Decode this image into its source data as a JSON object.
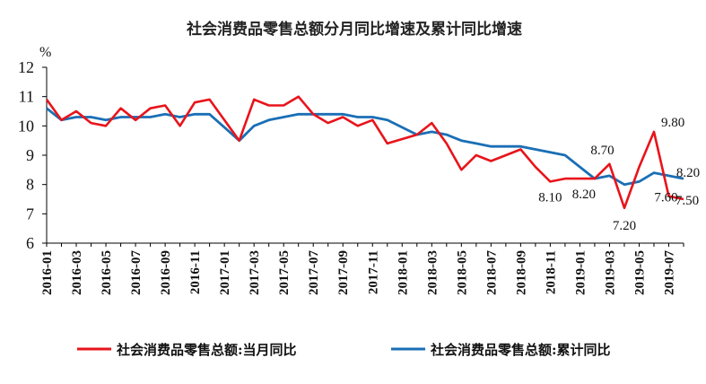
{
  "chart_data": {
    "type": "line",
    "title": "社会消费品零售总额分月同比增速及累计同比增速",
    "ylabel": "%",
    "xlabel": "",
    "ylim": [
      6,
      12
    ],
    "yticks": [
      6,
      7,
      8,
      9,
      10,
      11,
      12
    ],
    "grid": false,
    "legend_position": "bottom",
    "x": [
      "2016-01",
      "2016-02",
      "2016-03",
      "2016-04",
      "2016-05",
      "2016-06",
      "2016-07",
      "2016-08",
      "2016-09",
      "2016-10",
      "2016-11",
      "2016-12",
      "2017-01",
      "2017-02",
      "2017-03",
      "2017-04",
      "2017-05",
      "2017-06",
      "2017-07",
      "2017-08",
      "2017-09",
      "2017-10",
      "2017-11",
      "2017-12",
      "2018-01",
      "2018-02",
      "2018-03",
      "2018-04",
      "2018-05",
      "2018-06",
      "2018-07",
      "2018-08",
      "2018-09",
      "2018-10",
      "2018-11",
      "2018-12",
      "2019-01",
      "2019-02",
      "2019-03",
      "2019-04",
      "2019-05",
      "2019-06",
      "2019-07",
      "2019-08"
    ],
    "xtick_labels": [
      "2016-01",
      "2016-03",
      "2016-05",
      "2016-07",
      "2016-09",
      "2016-11",
      "2017-01",
      "2017-03",
      "2017-05",
      "2017-07",
      "2017-09",
      "2017-11",
      "2018-01",
      "2018-03",
      "2018-05",
      "2018-07",
      "2018-09",
      "2018-11",
      "2019-01",
      "2019-03",
      "2019-05",
      "2019-07"
    ],
    "series": [
      {
        "name": "社会消费品零售总额:当月同比",
        "color": "#e8141b",
        "values": [
          10.9,
          10.2,
          10.5,
          10.1,
          10.0,
          10.6,
          10.2,
          10.6,
          10.7,
          10.0,
          10.8,
          10.9,
          null,
          9.5,
          10.9,
          10.7,
          10.7,
          11.0,
          10.4,
          10.1,
          10.3,
          10.0,
          10.2,
          9.4,
          null,
          9.7,
          10.1,
          9.4,
          8.5,
          9.0,
          8.8,
          9.0,
          9.2,
          8.6,
          8.1,
          8.2,
          null,
          8.2,
          8.7,
          7.2,
          8.6,
          9.8,
          7.6,
          7.5
        ]
      },
      {
        "name": "社会消费品零售总额:累计同比",
        "color": "#1a6fb5",
        "values": [
          10.6,
          10.2,
          10.3,
          10.3,
          10.2,
          10.3,
          10.3,
          10.3,
          10.4,
          10.3,
          10.4,
          10.4,
          null,
          9.5,
          10.0,
          10.2,
          10.3,
          10.4,
          10.4,
          10.4,
          10.4,
          10.3,
          10.3,
          10.2,
          null,
          9.7,
          9.8,
          9.7,
          9.5,
          9.4,
          9.3,
          9.3,
          9.3,
          9.2,
          9.1,
          9.0,
          null,
          8.2,
          8.3,
          8.0,
          8.1,
          8.4,
          8.3,
          8.2
        ]
      }
    ],
    "annotations": [
      {
        "text": "8.10",
        "x": "2018-11",
        "series": 0
      },
      {
        "text": "8.20",
        "x": "2019-02",
        "series": 0
      },
      {
        "text": "8.70",
        "x": "2019-03",
        "series": 0
      },
      {
        "text": "7.20",
        "x": "2019-04",
        "series": 0
      },
      {
        "text": "9.80",
        "x": "2019-06",
        "series": 0
      },
      {
        "text": "7.60",
        "x": "2019-07",
        "series": 0
      },
      {
        "text": "7.50",
        "x": "2019-08",
        "series": 0
      },
      {
        "text": "8.20",
        "x": "2019-08",
        "series": 1
      }
    ]
  }
}
